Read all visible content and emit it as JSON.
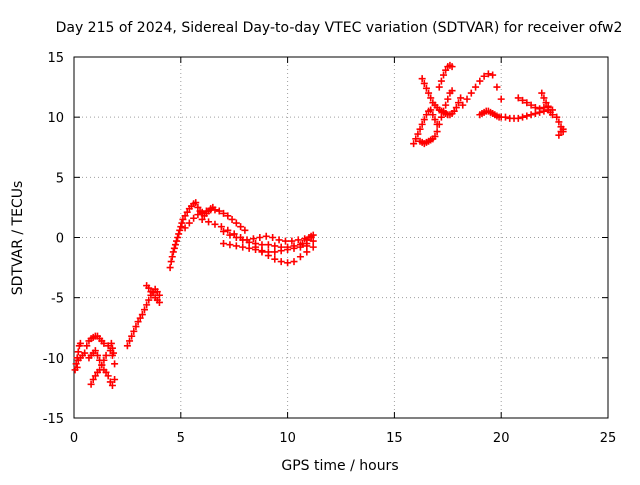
{
  "chart_data": {
    "type": "scatter",
    "title": "Day 215 of 2024, Sidereal Day-to-day VTEC variation (SDTVAR) for receiver ofw2",
    "xlabel": "GPS time / hours",
    "ylabel": "SDTVAR / TECUs",
    "xlim": [
      0,
      25
    ],
    "ylim": [
      -15,
      15
    ],
    "xticks": [
      "0",
      "5",
      "10",
      "15",
      "20",
      "25"
    ],
    "yticks": [
      "-15",
      "-10",
      "-5",
      "0",
      "5",
      "10",
      "15"
    ],
    "grid": true,
    "marker": "plus",
    "color": "#ff0000",
    "series": [
      {
        "name": "SDTVAR",
        "x": [
          0.05,
          0.1,
          0.15,
          0.2,
          0.25,
          0.3,
          0.15,
          0.2,
          0.3,
          0.4,
          0.5,
          0.6,
          0.7,
          0.8,
          0.9,
          1.0,
          1.1,
          1.2,
          1.3,
          1.4,
          0.8,
          0.9,
          1.0,
          1.1,
          1.2,
          1.3,
          1.4,
          1.5,
          0.7,
          0.8,
          0.9,
          1.0,
          1.1,
          1.2,
          1.3,
          1.4,
          1.5,
          1.6,
          1.7,
          1.8,
          1.9,
          1.6,
          1.7,
          1.8,
          1.9,
          1.75,
          1.8,
          1.85,
          2.5,
          2.6,
          2.7,
          2.8,
          2.9,
          3.0,
          3.1,
          3.2,
          3.3,
          3.4,
          3.5,
          3.6,
          3.7,
          3.8,
          3.9,
          4.0,
          3.4,
          3.5,
          3.6,
          3.7,
          3.8,
          3.9,
          4.0,
          4.5,
          4.55,
          4.6,
          4.65,
          4.7,
          4.75,
          4.8,
          4.85,
          4.9,
          4.95,
          5.0,
          5.05,
          5.1,
          5.2,
          5.3,
          5.4,
          5.5,
          5.6,
          5.7,
          5.8,
          5.9,
          6.0,
          6.1,
          6.2,
          6.3,
          6.4,
          6.5,
          5.2,
          5.4,
          5.6,
          5.8,
          6.0,
          6.2,
          6.4,
          6.6,
          6.8,
          7.0,
          7.2,
          7.4,
          7.6,
          7.8,
          8.0,
          6.0,
          6.3,
          6.6,
          6.9,
          7.2,
          7.5,
          7.8,
          8.1,
          8.4,
          8.7,
          9.0,
          9.3,
          9.6,
          9.9,
          10.2,
          10.5,
          10.8,
          11.1,
          7.0,
          7.3,
          7.6,
          7.9,
          8.2,
          8.5,
          8.8,
          9.1,
          9.4,
          9.7,
          10.0,
          10.3,
          10.6,
          10.9,
          11.2,
          7.0,
          7.3,
          7.6,
          7.9,
          8.2,
          8.5,
          8.8,
          9.1,
          9.4,
          9.7,
          10.0,
          10.3,
          10.6,
          10.9,
          8.5,
          8.8,
          9.1,
          9.4,
          9.7,
          10.0,
          10.3,
          10.6,
          10.9,
          11.2,
          10.7,
          10.9,
          11.0,
          11.1,
          11.2,
          15.9,
          16.0,
          16.1,
          16.2,
          16.3,
          16.4,
          16.5,
          16.6,
          16.7,
          16.8,
          16.9,
          17.0,
          16.2,
          16.3,
          16.4,
          16.5,
          16.6,
          16.7,
          16.8,
          16.9,
          17.0,
          17.1,
          17.2,
          17.3,
          17.4,
          17.5,
          17.6,
          17.7,
          16.3,
          16.4,
          16.5,
          16.6,
          16.7,
          16.8,
          16.9,
          17.0,
          17.1,
          17.2,
          17.3,
          17.4,
          17.5,
          17.6,
          17.7,
          17.8,
          17.9,
          18.0,
          18.1,
          17.1,
          17.2,
          17.3,
          17.4,
          17.5,
          17.6,
          17.7,
          18.2,
          18.4,
          18.6,
          18.8,
          19.0,
          19.2,
          19.4,
          19.6,
          19.8,
          20.0,
          19.0,
          19.1,
          19.2,
          19.3,
          19.4,
          19.5,
          19.6,
          19.7,
          19.8,
          19.9,
          20.0,
          20.2,
          20.4,
          20.6,
          20.8,
          21.0,
          21.2,
          21.4,
          21.6,
          21.8,
          22.0,
          22.2,
          22.4,
          20.8,
          21.0,
          21.2,
          21.4,
          21.6,
          21.8,
          22.0,
          22.2,
          21.9,
          22.0,
          22.1,
          22.2,
          22.3,
          22.4,
          22.6,
          22.7,
          22.8,
          22.9,
          22.7,
          22.8,
          22.9
        ],
        "y": [
          -11.0,
          -10.5,
          -10.0,
          -9.5,
          -9.0,
          -8.8,
          -10.8,
          -10.2,
          -10.0,
          -9.8,
          -9.6,
          -9.0,
          -8.6,
          -8.4,
          -8.3,
          -8.2,
          -8.2,
          -8.4,
          -8.6,
          -8.8,
          -12.2,
          -11.8,
          -11.5,
          -11.2,
          -11.0,
          -10.6,
          -10.2,
          -9.8,
          -10.0,
          -9.8,
          -9.6,
          -9.4,
          -9.8,
          -10.2,
          -10.6,
          -11.0,
          -11.2,
          -11.5,
          -12.0,
          -12.3,
          -11.8,
          -9.0,
          -9.4,
          -9.8,
          -10.5,
          -8.8,
          -9.2,
          -9.6,
          -9.0,
          -8.6,
          -8.2,
          -7.8,
          -7.4,
          -7.0,
          -6.7,
          -6.4,
          -6.0,
          -5.6,
          -5.2,
          -4.8,
          -4.5,
          -4.3,
          -4.5,
          -4.8,
          -4.0,
          -4.2,
          -4.5,
          -4.6,
          -5.0,
          -5.2,
          -5.4,
          -2.5,
          -2.0,
          -1.6,
          -1.2,
          -0.9,
          -0.6,
          -0.3,
          0.0,
          0.3,
          0.6,
          0.9,
          1.2,
          1.5,
          1.8,
          2.1,
          2.4,
          2.6,
          2.8,
          2.9,
          2.5,
          2.2,
          2.0,
          1.8,
          2.0,
          2.2,
          2.4,
          2.5,
          0.8,
          1.2,
          1.6,
          1.9,
          2.1,
          2.2,
          2.3,
          2.3,
          2.2,
          2.0,
          1.8,
          1.5,
          1.2,
          0.9,
          0.6,
          1.5,
          1.3,
          1.1,
          0.9,
          0.6,
          0.3,
          0.0,
          -0.2,
          -0.1,
          0.0,
          0.1,
          0.0,
          -0.2,
          -0.3,
          -0.3,
          -0.2,
          -0.1,
          0.0,
          0.5,
          0.2,
          0.0,
          -0.2,
          -0.4,
          -0.5,
          -0.6,
          -0.6,
          -0.7,
          -0.8,
          -0.8,
          -0.7,
          -0.6,
          -0.5,
          -0.3,
          -0.5,
          -0.6,
          -0.7,
          -0.8,
          -0.9,
          -1.0,
          -1.1,
          -1.2,
          -1.2,
          -1.1,
          -1.0,
          -0.9,
          -0.8,
          -0.7,
          -0.8,
          -1.2,
          -1.5,
          -1.8,
          -2.0,
          -2.1,
          -2.0,
          -1.6,
          -1.2,
          -0.8,
          -0.5,
          -0.2,
          0.0,
          0.1,
          0.2,
          7.8,
          8.2,
          8.6,
          9.0,
          9.4,
          9.8,
          10.2,
          10.5,
          10.6,
          10.2,
          9.8,
          9.4,
          8.0,
          7.9,
          7.8,
          7.9,
          8.0,
          8.1,
          8.2,
          8.4,
          8.8,
          9.4,
          10.0,
          10.5,
          11.0,
          11.5,
          12.0,
          12.2,
          13.2,
          12.8,
          12.4,
          12.0,
          11.6,
          11.2,
          11.0,
          10.8,
          10.6,
          10.5,
          10.4,
          10.3,
          10.2,
          10.2,
          10.3,
          10.5,
          10.8,
          11.2,
          11.6,
          12.5,
          13.0,
          13.5,
          13.9,
          14.2,
          14.3,
          14.2,
          11.0,
          11.5,
          12.0,
          12.5,
          13.0,
          13.4,
          13.6,
          13.5,
          12.5,
          11.5,
          10.2,
          10.3,
          10.4,
          10.5,
          10.5,
          10.4,
          10.3,
          10.2,
          10.1,
          10.0,
          10.0,
          10.0,
          9.9,
          9.9,
          9.9,
          10.0,
          10.1,
          10.2,
          10.3,
          10.4,
          10.5,
          10.6,
          10.6,
          11.6,
          11.4,
          11.2,
          11.0,
          10.8,
          10.7,
          10.8,
          10.9,
          12.0,
          11.6,
          11.2,
          10.8,
          10.4,
          10.2,
          10.0,
          9.6,
          9.2,
          8.8,
          8.5,
          8.8,
          9.0
        ]
      }
    ]
  }
}
